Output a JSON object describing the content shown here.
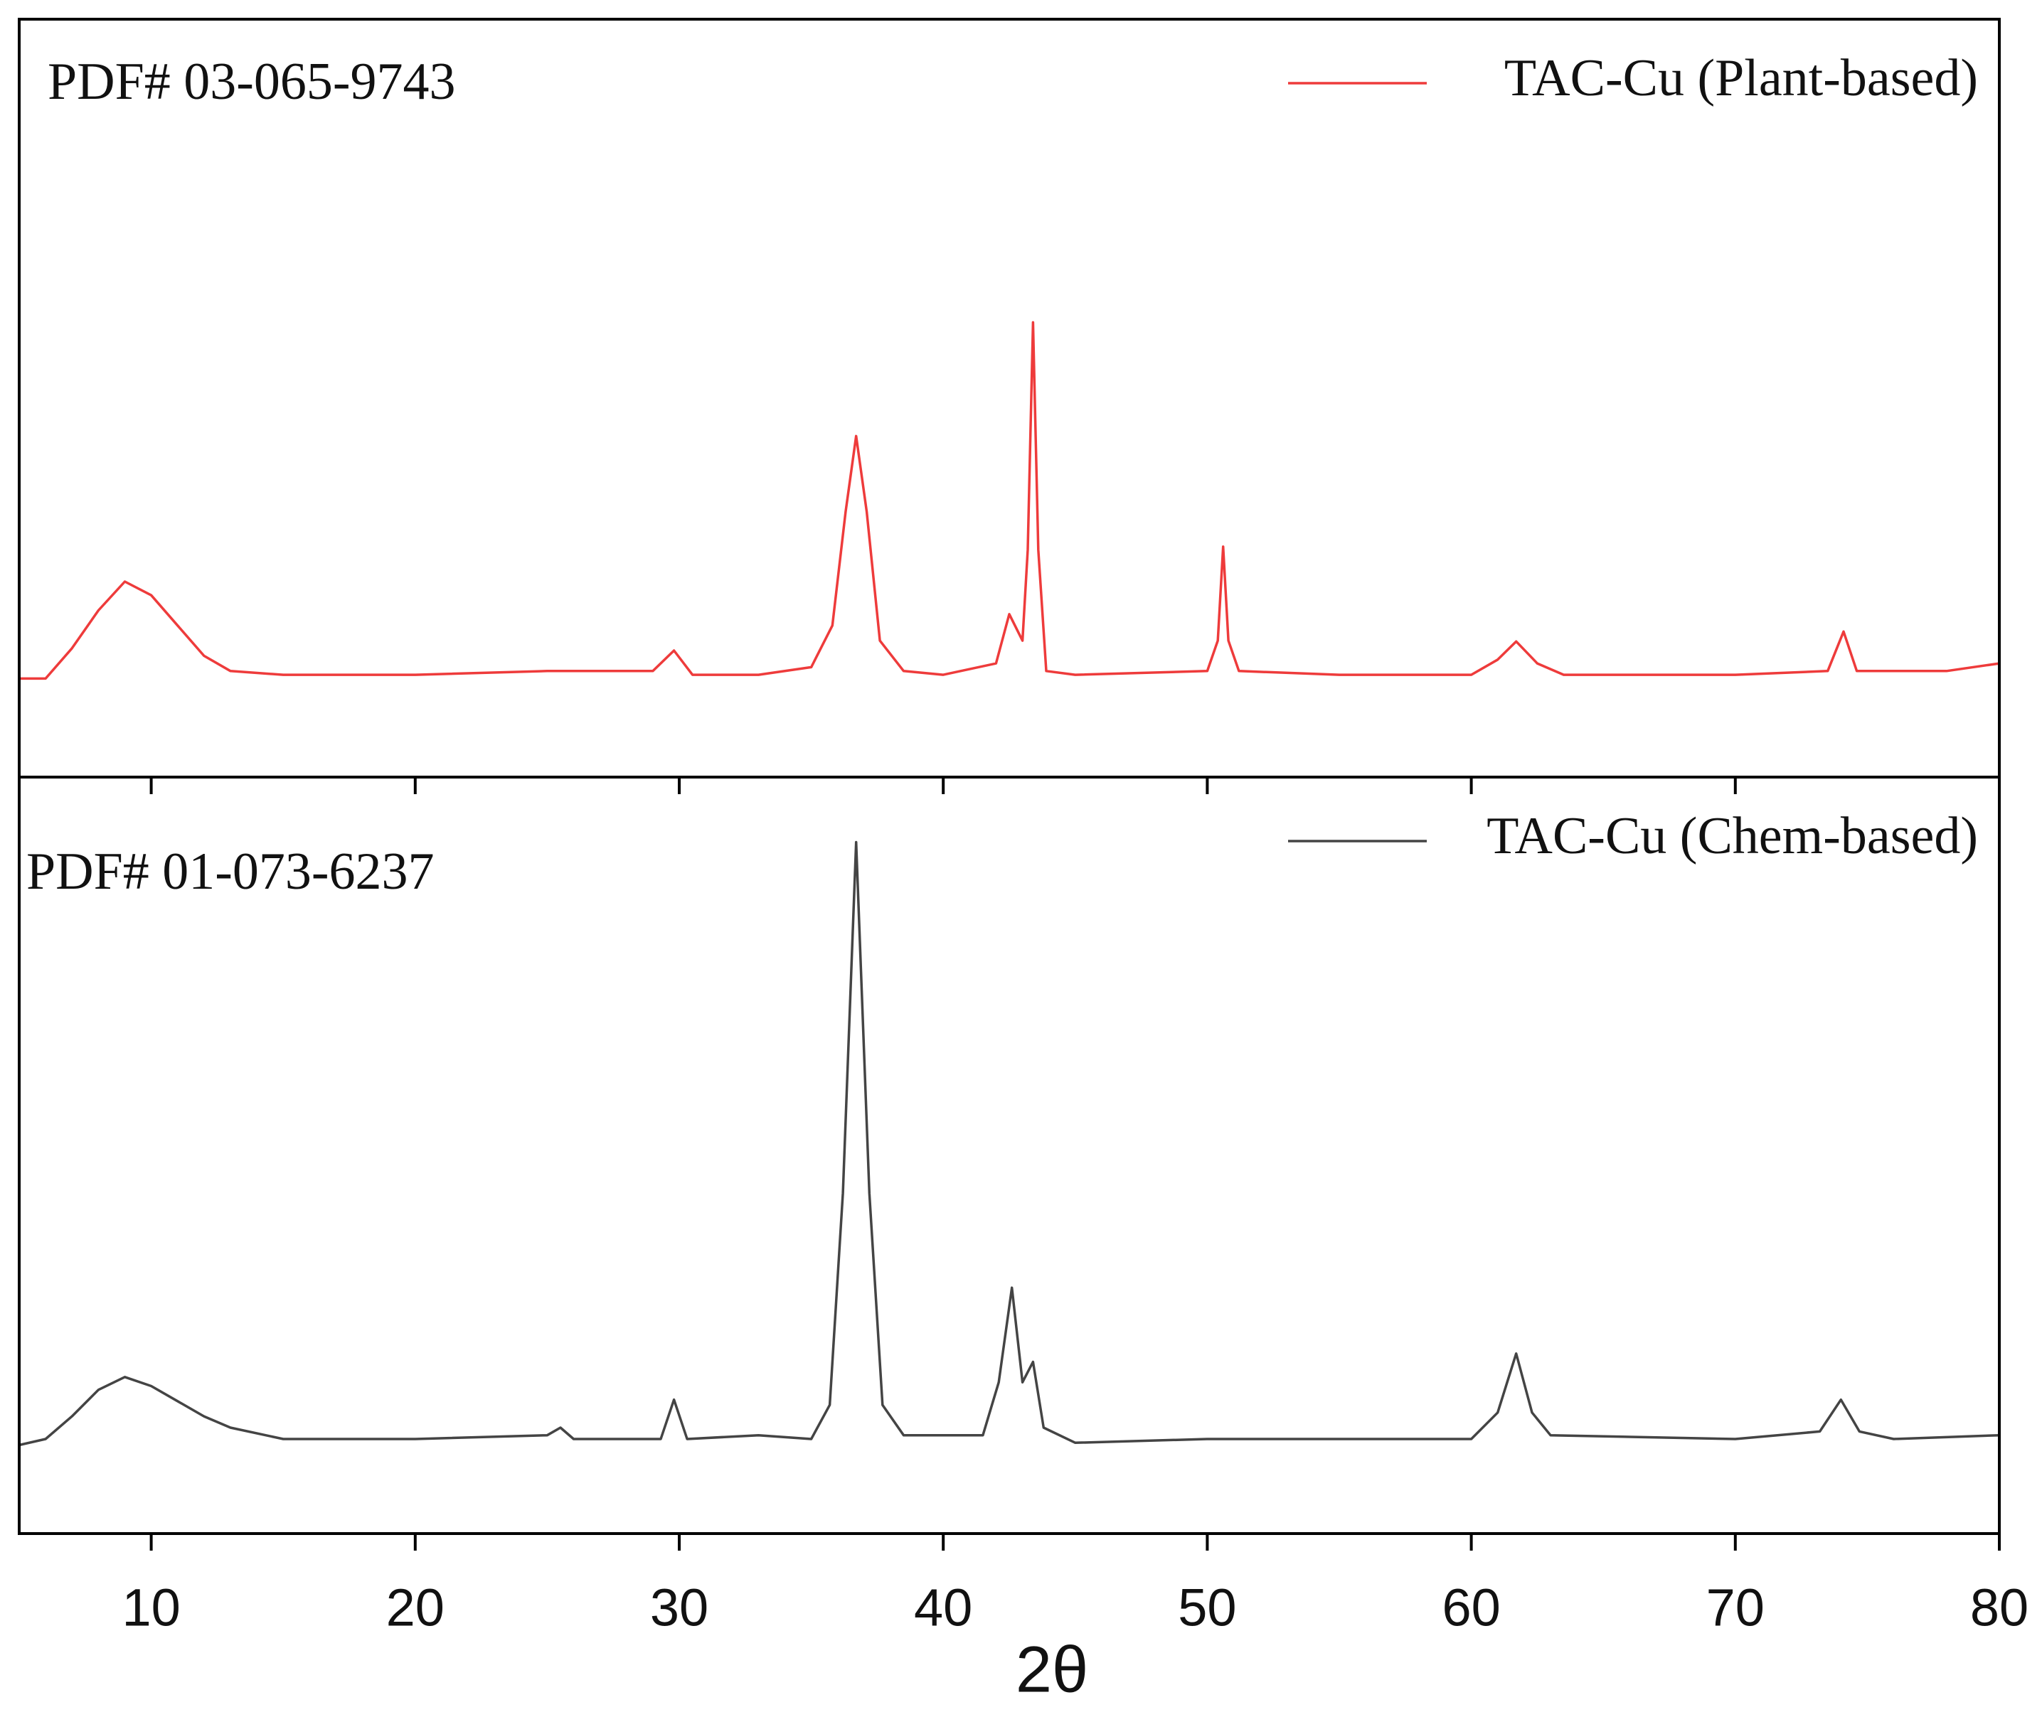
{
  "chart_data": [
    {
      "type": "line",
      "annotation": "PDF# 03-065-9743",
      "legend": "upper right",
      "xlim": [
        5,
        80
      ],
      "ylim": [
        0,
        100
      ],
      "series": [
        {
          "name": "TAC-Cu (Plant-based)",
          "color": "#ee3b3b",
          "x": [
            5,
            6,
            7,
            8,
            9,
            10,
            11,
            12,
            13,
            15,
            20,
            25,
            29,
            29.8,
            30.5,
            33,
            35,
            35.8,
            36.3,
            36.7,
            37.1,
            37.6,
            38.5,
            40,
            42,
            42.5,
            43,
            43.2,
            43.4,
            43.6,
            43.9,
            45,
            50,
            50.4,
            50.6,
            50.8,
            51.2,
            55,
            60,
            61,
            61.7,
            62.5,
            63.5,
            70,
            73.5,
            74.1,
            74.6,
            78,
            80
          ],
          "values": [
            13,
            13,
            17,
            22,
            25.8,
            24,
            20,
            16,
            14,
            13.5,
            13.5,
            14,
            14,
            16.7,
            13.5,
            13.5,
            14.5,
            20,
            35,
            45,
            35,
            18,
            14,
            13.5,
            15,
            21.5,
            18,
            30,
            60,
            30,
            14,
            13.5,
            14,
            18,
            30.4,
            18,
            14,
            13.5,
            13.5,
            15.5,
            17.9,
            15,
            13.5,
            13.5,
            14,
            19.2,
            14,
            14,
            15
          ]
        }
      ]
    },
    {
      "type": "line",
      "annotation": "PDF# 01-073-6237",
      "legend": "upper right",
      "xlim": [
        5,
        80
      ],
      "ylim": [
        0,
        100
      ],
      "xticks": [
        10,
        20,
        30,
        40,
        50,
        60,
        70,
        80
      ],
      "xlabel": "2θ",
      "series": [
        {
          "name": "TAC-Cu (Chem-based)",
          "color": "#444444",
          "x": [
            5,
            6,
            7,
            8,
            9,
            10,
            11,
            12,
            13,
            15,
            20,
            25,
            25.5,
            26,
            29.3,
            29.8,
            30.3,
            33,
            35,
            35.7,
            36.2,
            36.7,
            37.2,
            37.7,
            38.5,
            41.5,
            42.1,
            42.6,
            43,
            43.4,
            43.8,
            45,
            50,
            55,
            60,
            61,
            61.7,
            62.3,
            63,
            70,
            73.2,
            74,
            74.7,
            76,
            80
          ],
          "values": [
            11.7,
            12.5,
            15.5,
            19,
            20.7,
            19.5,
            17.5,
            15.5,
            14,
            12.5,
            12.5,
            13,
            14,
            12.5,
            12.5,
            17.7,
            12.5,
            13,
            12.5,
            17,
            45,
            91.4,
            45,
            17,
            13,
            13,
            20,
            32.5,
            20,
            22.7,
            14,
            12,
            12.5,
            12.5,
            12.5,
            16,
            23.8,
            16,
            13,
            12.5,
            13.5,
            17.7,
            13.5,
            12.5,
            13
          ]
        }
      ]
    }
  ]
}
